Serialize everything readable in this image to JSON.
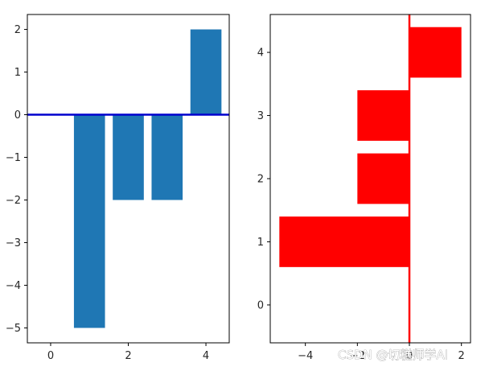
{
  "chart_data": [
    {
      "type": "bar",
      "orientation": "vertical",
      "categories": [
        1,
        2,
        3,
        4
      ],
      "values": [
        -5,
        -2,
        -2,
        2
      ],
      "bar_color": "#1f77b4",
      "reference_line": {
        "axis": "y",
        "value": 0,
        "color": "#0000cd"
      },
      "xlim": [
        -0.6,
        4.6
      ],
      "ylim": [
        -5.35,
        2.35
      ],
      "xticks": [
        0,
        2,
        4
      ],
      "yticks": [
        2,
        1,
        0,
        -1,
        -2,
        -3,
        -4,
        -5
      ],
      "xtick_labels": [
        "0",
        "2",
        "4"
      ],
      "ytick_labels": [
        "2",
        "1",
        "0",
        "−1",
        "−2",
        "−3",
        "−4",
        "−5"
      ],
      "grid": false,
      "legend": "none"
    },
    {
      "type": "bar",
      "orientation": "horizontal",
      "categories": [
        1,
        2,
        3,
        4
      ],
      "values": [
        -5,
        -2,
        -2,
        2
      ],
      "bar_color": "#ff0000",
      "reference_line": {
        "axis": "x",
        "value": 0,
        "color": "#ff0000"
      },
      "xlim": [
        -5.35,
        2.35
      ],
      "ylim": [
        -0.6,
        4.6
      ],
      "xticks": [
        -4,
        -2,
        0,
        2
      ],
      "yticks": [
        4,
        3,
        2,
        1,
        0
      ],
      "xtick_labels": [
        "−4",
        "−2",
        "0",
        "2"
      ],
      "ytick_labels": [
        "4",
        "3",
        "2",
        "1",
        "0"
      ],
      "grid": false,
      "legend": "none"
    }
  ],
  "watermark": {
    "text": "CSDN @切糕师学AI"
  }
}
